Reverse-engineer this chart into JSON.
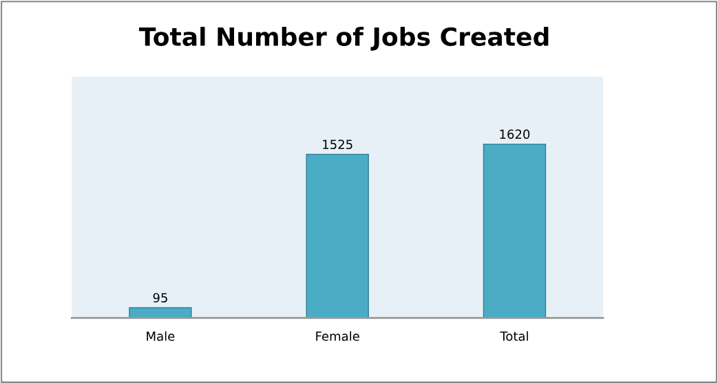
{
  "chart_data": {
    "type": "bar",
    "title": "Total Number of Jobs Created",
    "categories": [
      "Male",
      "Female",
      "Total"
    ],
    "values": [
      95,
      1525,
      1620
    ],
    "color": "#4bacc6",
    "ylim": [
      0,
      2250
    ],
    "data_labels": true,
    "tick_labels": "x",
    "grid": false,
    "legend": false
  }
}
